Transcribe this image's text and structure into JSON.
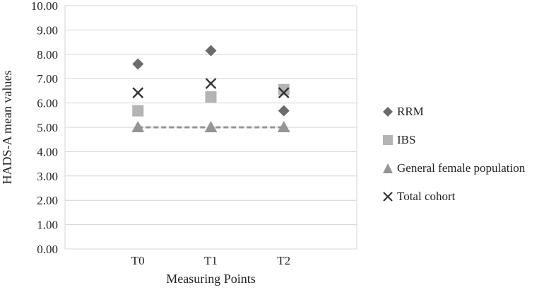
{
  "chart_data": {
    "type": "scatter",
    "categories": [
      "T0",
      "T1",
      "T2"
    ],
    "xlabel": "Measuring Points",
    "ylabel": "HADS-A mean values",
    "ylim": [
      0,
      10
    ],
    "y_ticks": [
      "0.00",
      "1.00",
      "2.00",
      "3.00",
      "4.00",
      "5.00",
      "6.00",
      "7.00",
      "8.00",
      "9.00",
      "10.00"
    ],
    "grid": true,
    "legend_position": "right",
    "series": [
      {
        "name": "RRM",
        "marker": "diamond",
        "color": "#6b6b6b",
        "values": [
          7.6,
          8.15,
          5.68
        ],
        "line": false
      },
      {
        "name": "IBS",
        "marker": "square",
        "color": "#b4b4b4",
        "values": [
          5.68,
          6.25,
          6.55
        ],
        "line": false
      },
      {
        "name": "General female population",
        "marker": "triangle",
        "color": "#959595",
        "values": [
          5.0,
          5.0,
          5.0
        ],
        "line": true
      },
      {
        "name": "Total cohort",
        "marker": "x",
        "color": "#333333",
        "values": [
          6.42,
          6.8,
          6.42
        ],
        "line": false
      }
    ]
  }
}
